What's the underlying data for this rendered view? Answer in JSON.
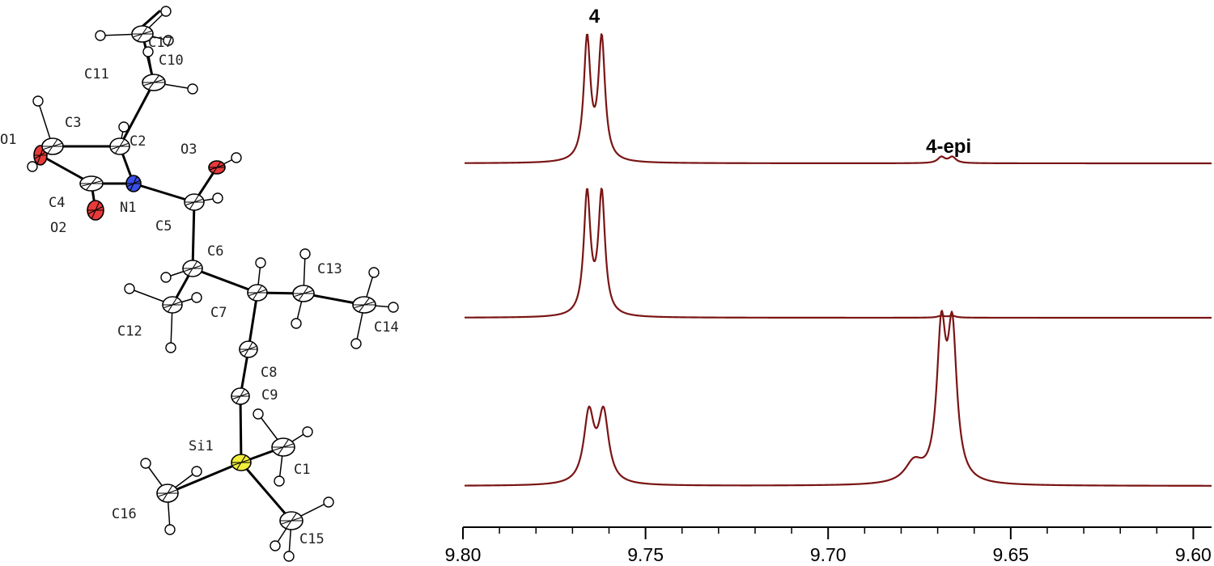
{
  "molecule": {
    "atoms": [
      {
        "label": "C17",
        "color": "#ffffff"
      },
      {
        "label": "C11",
        "color": "#ffffff"
      },
      {
        "label": "C10",
        "color": "#ffffff"
      },
      {
        "label": "O1",
        "color": "#e83a3a"
      },
      {
        "label": "C3",
        "color": "#ffffff"
      },
      {
        "label": "C2",
        "color": "#ffffff"
      },
      {
        "label": "O3",
        "color": "#e83a3a"
      },
      {
        "label": "C4",
        "color": "#ffffff"
      },
      {
        "label": "N1",
        "color": "#3a4ee8"
      },
      {
        "label": "O2",
        "color": "#e83a3a"
      },
      {
        "label": "C5",
        "color": "#ffffff"
      },
      {
        "label": "C6",
        "color": "#ffffff"
      },
      {
        "label": "C13",
        "color": "#ffffff"
      },
      {
        "label": "C7",
        "color": "#ffffff"
      },
      {
        "label": "C12",
        "color": "#ffffff"
      },
      {
        "label": "C14",
        "color": "#ffffff"
      },
      {
        "label": "C8",
        "color": "#ffffff"
      },
      {
        "label": "C9",
        "color": "#ffffff"
      },
      {
        "label": "Si1",
        "color": "#f2ee3a"
      },
      {
        "label": "C1",
        "color": "#ffffff"
      },
      {
        "label": "C16",
        "color": "#ffffff"
      },
      {
        "label": "C15",
        "color": "#ffffff"
      }
    ]
  },
  "spectra": {
    "line_color": "#7a1414",
    "xaxis": {
      "ticks": [
        "9.80",
        "9.75",
        "9.70",
        "9.65",
        "9.60"
      ],
      "range": [
        9.8,
        9.595
      ]
    },
    "peak_labels": [
      "4",
      "4-epi"
    ]
  },
  "chart_data": {
    "type": "line",
    "x_unit": "ppm",
    "xlim": [
      9.8,
      9.595
    ],
    "xticks": [
      9.8,
      9.75,
      9.7,
      9.65,
      9.6
    ],
    "annotations": [
      {
        "text": "4",
        "x": 9.764
      },
      {
        "text": "4-epi",
        "x": 9.667
      }
    ],
    "series": [
      {
        "peaks": [
          {
            "x": 9.766,
            "height": 1.0,
            "width": 0.0011
          },
          {
            "x": 9.762,
            "height": 1.0,
            "width": 0.0011
          },
          {
            "x": 9.669,
            "height": 0.05,
            "width": 0.0012
          },
          {
            "x": 9.666,
            "height": 0.05,
            "width": 0.0012
          }
        ]
      },
      {
        "peaks": [
          {
            "x": 9.766,
            "height": 1.0,
            "width": 0.0011
          },
          {
            "x": 9.762,
            "height": 1.0,
            "width": 0.0011
          },
          {
            "x": 9.669,
            "height": 0.015,
            "width": 0.0012
          },
          {
            "x": 9.666,
            "height": 0.015,
            "width": 0.0012
          }
        ]
      },
      {
        "peaks": [
          {
            "x": 9.7655,
            "height": 0.48,
            "width": 0.0017
          },
          {
            "x": 9.7615,
            "height": 0.48,
            "width": 0.0017
          },
          {
            "x": 9.669,
            "height": 1.0,
            "width": 0.0015
          },
          {
            "x": 9.666,
            "height": 1.0,
            "width": 0.0015
          },
          {
            "x": 9.6765,
            "height": 0.14,
            "width": 0.003
          }
        ]
      }
    ]
  }
}
